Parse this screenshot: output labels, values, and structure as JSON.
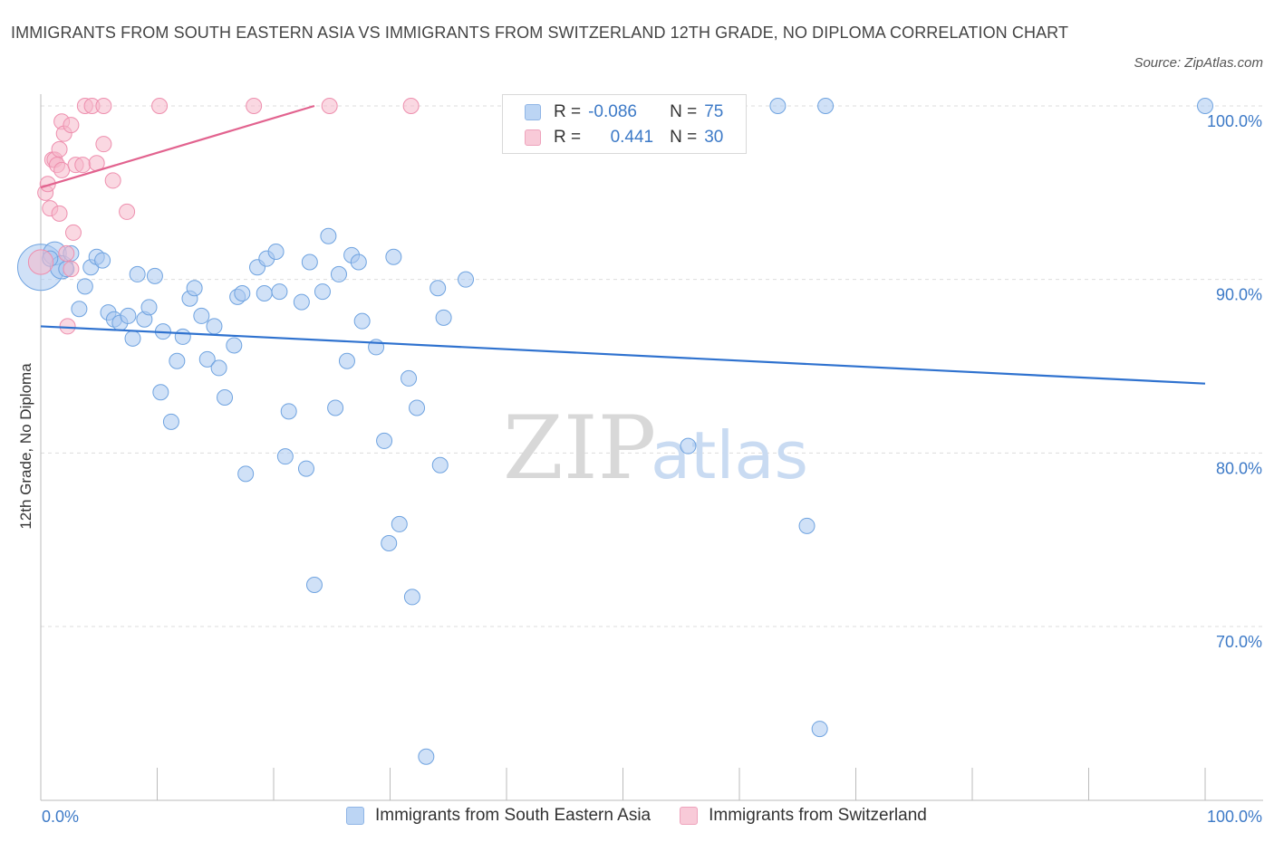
{
  "title": "IMMIGRANTS FROM SOUTH EASTERN ASIA VS IMMIGRANTS FROM SWITZERLAND 12TH GRADE, NO DIPLOMA CORRELATION CHART",
  "source": "Source: ZipAtlas.com",
  "watermark": {
    "zip": "ZIP",
    "atlas": "atlas"
  },
  "legend": {
    "rows": [
      {
        "r_label": "R =",
        "r_value": "-0.086",
        "n_label": "N =",
        "n_value": "75",
        "color": "#a9c8f0"
      },
      {
        "r_label": "R =",
        "r_value": "0.441",
        "n_label": "N =",
        "n_value": "30",
        "color": "#f5b8cb"
      }
    ]
  },
  "bottom_legend": [
    {
      "label": "Immigrants from South Eastern Asia",
      "color": "#a9c8f0"
    },
    {
      "label": "Immigrants from Switzerland",
      "color": "#f5b8cb"
    }
  ],
  "chart_data": {
    "type": "scatter",
    "title": "IMMIGRANTS FROM SOUTH EASTERN ASIA VS IMMIGRANTS FROM SWITZERLAND 12TH GRADE, NO DIPLOMA CORRELATION CHART",
    "xlabel": "",
    "ylabel": "12th Grade, No Diploma",
    "xlim": [
      0,
      100
    ],
    "ylim": [
      60,
      100
    ],
    "x_tick_labels": [
      "0.0%",
      "100.0%"
    ],
    "y_ticks": [
      70,
      80,
      90,
      100
    ],
    "y_tick_labels": [
      "70.0%",
      "80.0%",
      "90.0%",
      "100.0%"
    ],
    "grid": true,
    "legend_position": "top-center",
    "series": [
      {
        "name": "Immigrants from South Eastern Asia",
        "color": "#6fa3e0",
        "trend": {
          "x": [
            0,
            100
          ],
          "y": [
            87.3,
            84.0
          ]
        },
        "points": [
          {
            "x": 0.0,
            "y": 90.7,
            "s": 3
          },
          {
            "x": 1.2,
            "y": 91.5,
            "s": 1.5
          },
          {
            "x": 1.8,
            "y": 90.7,
            "s": 1.5
          },
          {
            "x": 3.3,
            "y": 88.3,
            "s": 1
          },
          {
            "x": 3.8,
            "y": 89.6,
            "s": 1
          },
          {
            "x": 4.3,
            "y": 90.7,
            "s": 1
          },
          {
            "x": 4.8,
            "y": 91.3,
            "s": 1
          },
          {
            "x": 5.3,
            "y": 91.1,
            "s": 1
          },
          {
            "x": 5.8,
            "y": 88.1,
            "s": 1
          },
          {
            "x": 6.3,
            "y": 87.7,
            "s": 1
          },
          {
            "x": 6.8,
            "y": 87.5,
            "s": 1
          },
          {
            "x": 7.5,
            "y": 87.9,
            "s": 1
          },
          {
            "x": 7.9,
            "y": 86.6,
            "s": 1
          },
          {
            "x": 8.3,
            "y": 90.3,
            "s": 1
          },
          {
            "x": 8.9,
            "y": 87.7,
            "s": 1
          },
          {
            "x": 9.3,
            "y": 88.4,
            "s": 1
          },
          {
            "x": 9.8,
            "y": 90.2,
            "s": 1
          },
          {
            "x": 10.5,
            "y": 87.0,
            "s": 1
          },
          {
            "x": 11.7,
            "y": 85.3,
            "s": 1
          },
          {
            "x": 12.2,
            "y": 86.7,
            "s": 1
          },
          {
            "x": 10.3,
            "y": 83.5,
            "s": 1
          },
          {
            "x": 11.2,
            "y": 81.8,
            "s": 1
          },
          {
            "x": 12.8,
            "y": 88.9,
            "s": 1
          },
          {
            "x": 13.2,
            "y": 89.5,
            "s": 1
          },
          {
            "x": 13.8,
            "y": 87.9,
            "s": 1
          },
          {
            "x": 14.3,
            "y": 85.4,
            "s": 1
          },
          {
            "x": 14.9,
            "y": 87.3,
            "s": 1
          },
          {
            "x": 15.3,
            "y": 84.9,
            "s": 1
          },
          {
            "x": 15.8,
            "y": 83.2,
            "s": 1
          },
          {
            "x": 16.6,
            "y": 86.2,
            "s": 1
          },
          {
            "x": 16.9,
            "y": 89.0,
            "s": 1
          },
          {
            "x": 17.3,
            "y": 89.2,
            "s": 1
          },
          {
            "x": 17.6,
            "y": 78.8,
            "s": 1
          },
          {
            "x": 18.6,
            "y": 90.7,
            "s": 1
          },
          {
            "x": 19.2,
            "y": 89.2,
            "s": 1
          },
          {
            "x": 19.4,
            "y": 91.2,
            "s": 1
          },
          {
            "x": 20.2,
            "y": 91.6,
            "s": 1
          },
          {
            "x": 20.5,
            "y": 89.3,
            "s": 1
          },
          {
            "x": 21.0,
            "y": 79.8,
            "s": 1
          },
          {
            "x": 21.3,
            "y": 82.4,
            "s": 1
          },
          {
            "x": 22.4,
            "y": 88.7,
            "s": 1
          },
          {
            "x": 22.8,
            "y": 79.1,
            "s": 1
          },
          {
            "x": 23.1,
            "y": 91.0,
            "s": 1
          },
          {
            "x": 23.5,
            "y": 72.4,
            "s": 1
          },
          {
            "x": 24.2,
            "y": 89.3,
            "s": 1
          },
          {
            "x": 24.7,
            "y": 92.5,
            "s": 1
          },
          {
            "x": 25.3,
            "y": 82.6,
            "s": 1
          },
          {
            "x": 25.6,
            "y": 90.3,
            "s": 1
          },
          {
            "x": 26.3,
            "y": 85.3,
            "s": 1
          },
          {
            "x": 26.7,
            "y": 91.4,
            "s": 1
          },
          {
            "x": 27.3,
            "y": 91.0,
            "s": 1
          },
          {
            "x": 27.6,
            "y": 87.6,
            "s": 1
          },
          {
            "x": 28.8,
            "y": 86.1,
            "s": 1
          },
          {
            "x": 29.5,
            "y": 80.7,
            "s": 1
          },
          {
            "x": 29.9,
            "y": 74.8,
            "s": 1
          },
          {
            "x": 30.3,
            "y": 91.3,
            "s": 1
          },
          {
            "x": 30.8,
            "y": 75.9,
            "s": 1
          },
          {
            "x": 31.6,
            "y": 84.3,
            "s": 1
          },
          {
            "x": 31.9,
            "y": 71.7,
            "s": 1
          },
          {
            "x": 32.3,
            "y": 82.6,
            "s": 1
          },
          {
            "x": 33.1,
            "y": 62.5,
            "s": 1
          },
          {
            "x": 34.1,
            "y": 89.5,
            "s": 1
          },
          {
            "x": 34.3,
            "y": 79.3,
            "s": 1
          },
          {
            "x": 34.6,
            "y": 87.8,
            "s": 1
          },
          {
            "x": 36.5,
            "y": 90.0,
            "s": 1
          },
          {
            "x": 43.1,
            "y": 100.0,
            "s": 1
          },
          {
            "x": 55.6,
            "y": 80.4,
            "s": 1
          },
          {
            "x": 65.8,
            "y": 75.8,
            "s": 1
          },
          {
            "x": 66.9,
            "y": 64.1,
            "s": 1
          },
          {
            "x": 63.3,
            "y": 100.0,
            "s": 1
          },
          {
            "x": 67.4,
            "y": 100.0,
            "s": 1
          },
          {
            "x": 100.0,
            "y": 100.0,
            "s": 1
          },
          {
            "x": 0.8,
            "y": 91.2,
            "s": 1
          },
          {
            "x": 2.6,
            "y": 91.5,
            "s": 1
          },
          {
            "x": 2.2,
            "y": 90.6,
            "s": 1
          }
        ]
      },
      {
        "name": "Immigrants from Switzerland",
        "color": "#ee8fae",
        "trend": {
          "x": [
            0,
            23.5
          ],
          "y": [
            95.3,
            100.0
          ]
        },
        "points": [
          {
            "x": 0.0,
            "y": 91.0,
            "s": 1.6
          },
          {
            "x": 0.4,
            "y": 95.0,
            "s": 1
          },
          {
            "x": 0.6,
            "y": 95.5,
            "s": 1
          },
          {
            "x": 0.8,
            "y": 94.1,
            "s": 1
          },
          {
            "x": 1.0,
            "y": 96.9,
            "s": 1
          },
          {
            "x": 1.2,
            "y": 96.9,
            "s": 1
          },
          {
            "x": 1.4,
            "y": 96.6,
            "s": 1
          },
          {
            "x": 1.6,
            "y": 93.8,
            "s": 1
          },
          {
            "x": 1.6,
            "y": 97.5,
            "s": 1
          },
          {
            "x": 1.8,
            "y": 96.3,
            "s": 1
          },
          {
            "x": 1.8,
            "y": 99.1,
            "s": 1
          },
          {
            "x": 2.0,
            "y": 98.4,
            "s": 1
          },
          {
            "x": 2.2,
            "y": 91.5,
            "s": 1
          },
          {
            "x": 2.3,
            "y": 87.3,
            "s": 1
          },
          {
            "x": 2.6,
            "y": 98.9,
            "s": 1
          },
          {
            "x": 2.6,
            "y": 90.6,
            "s": 1
          },
          {
            "x": 2.8,
            "y": 92.7,
            "s": 1
          },
          {
            "x": 3.0,
            "y": 96.6,
            "s": 1
          },
          {
            "x": 3.6,
            "y": 96.6,
            "s": 1
          },
          {
            "x": 3.8,
            "y": 100.0,
            "s": 1
          },
          {
            "x": 4.4,
            "y": 100.0,
            "s": 1
          },
          {
            "x": 4.8,
            "y": 96.7,
            "s": 1
          },
          {
            "x": 5.4,
            "y": 97.8,
            "s": 1
          },
          {
            "x": 5.4,
            "y": 100.0,
            "s": 1
          },
          {
            "x": 6.2,
            "y": 95.7,
            "s": 1
          },
          {
            "x": 7.4,
            "y": 93.9,
            "s": 1
          },
          {
            "x": 10.2,
            "y": 100.0,
            "s": 1
          },
          {
            "x": 18.3,
            "y": 100.0,
            "s": 1
          },
          {
            "x": 24.8,
            "y": 100.0,
            "s": 1
          },
          {
            "x": 31.8,
            "y": 100.0,
            "s": 1
          }
        ]
      }
    ]
  }
}
